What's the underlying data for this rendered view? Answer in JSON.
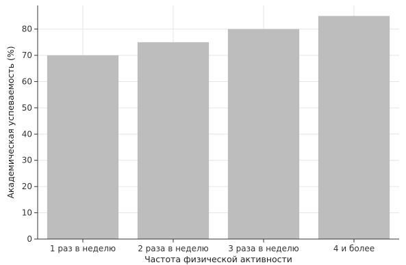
{
  "chart_data": {
    "type": "bar",
    "title": "",
    "xlabel": "Частота физической активности",
    "ylabel": "Академическая успеваемость (%)",
    "categories": [
      "1 раз в неделю",
      "2 раза в неделю",
      "3 раза в неделю",
      "4 и более"
    ],
    "values": [
      70,
      75,
      80,
      85
    ],
    "ylim": [
      0,
      89
    ],
    "yticks": [
      "0",
      "10",
      "20",
      "30",
      "40",
      "50",
      "60",
      "70",
      "80"
    ],
    "grid": true,
    "bar_color": "#bdbdbd",
    "grid_color": "#e6e6e6",
    "axis_color": "#333333"
  }
}
